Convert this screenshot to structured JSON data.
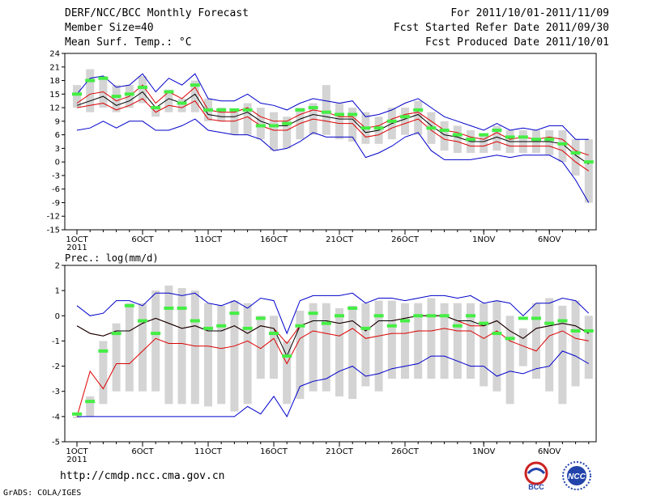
{
  "header": {
    "title": "DERF/NCC/BCC Monthly Forecast",
    "member": "Member Size=40",
    "variable": "Mean Surf. Temp.: °C",
    "period": "For 2011/10/01-2011/11/09",
    "fcst_started": "Fcst Started Refer Date 2011/09/30",
    "fcst_produced": "Fcst Produced Date 2011/10/01"
  },
  "footer": {
    "url": "http://cmdp.ncc.cma.gov.cn",
    "credit": "GrADS: COLA/IGES",
    "logo_bcc": "BCC",
    "logo_ncc": "NCC"
  },
  "colors": {
    "box": "#d4d4d4",
    "median": "#44ee44",
    "max": "#0000cc",
    "min": "#0000cc",
    "p": "#dd0000",
    "mean": "#000000"
  },
  "chart_data": [
    {
      "type": "box",
      "title": "Mean Surf. Temp.: °C",
      "ylim": [
        -15,
        24
      ],
      "yticks": [
        24,
        21,
        18,
        15,
        12,
        9,
        6,
        3,
        0,
        -3,
        -6,
        -9,
        -12,
        -15
      ],
      "xticks": [
        {
          "i": 0,
          "label": "1OCT"
        },
        {
          "i": 5,
          "label": "6OCT"
        },
        {
          "i": 10,
          "label": "11OCT"
        },
        {
          "i": 15,
          "label": "16OCT"
        },
        {
          "i": 20,
          "label": "21OCT"
        },
        {
          "i": 25,
          "label": "26OCT"
        },
        {
          "i": 31,
          "label": "1NOV"
        },
        {
          "i": 36,
          "label": "6NOV"
        }
      ],
      "year_label": "2011",
      "days": 40,
      "max": [
        15,
        18.5,
        19,
        16.5,
        17,
        19.5,
        15.5,
        18.5,
        17,
        19.5,
        14,
        13.5,
        13.5,
        15,
        13,
        12.5,
        11.5,
        13,
        14,
        13.5,
        13,
        13.5,
        10,
        10.5,
        11.5,
        13,
        14,
        12,
        10,
        9,
        8,
        7,
        8.5,
        7,
        7.5,
        7,
        8,
        8,
        5,
        5
      ],
      "p90": [
        13,
        15,
        15.5,
        13.5,
        14.5,
        17,
        13,
        15.5,
        14,
        16.5,
        11.5,
        11,
        11,
        12,
        10,
        9,
        9,
        10.5,
        11.5,
        11,
        10,
        10,
        7.5,
        8,
        9.5,
        10.5,
        11,
        9,
        7,
        6.5,
        5.5,
        5,
        6.5,
        5,
        5.5,
        5,
        5.5,
        5,
        2.5,
        1.5
      ],
      "mean": [
        12.5,
        13.5,
        14.5,
        12.5,
        13.5,
        15.5,
        12,
        14,
        13,
        15,
        10.5,
        10,
        10,
        11,
        9,
        8,
        8,
        9.5,
        10.5,
        10,
        9.5,
        9.5,
        6.5,
        7,
        8.5,
        9.5,
        10.5,
        8,
        6,
        5.5,
        4.5,
        4.5,
        5.5,
        4.5,
        4.5,
        4.5,
        4.5,
        4,
        1.5,
        -0.5
      ],
      "p10": [
        12,
        12.5,
        13,
        11.5,
        12.5,
        14,
        11,
        12.5,
        12,
        13.5,
        9.5,
        9,
        9,
        10,
        8,
        7,
        7,
        8.5,
        9.5,
        9,
        8.5,
        8.5,
        5.5,
        6,
        7.5,
        8.5,
        9.5,
        7,
        5,
        4.5,
        3.5,
        3.5,
        4.5,
        3.5,
        3.5,
        3.5,
        3.5,
        2.5,
        0,
        -2
      ],
      "min": [
        7,
        7.5,
        9,
        7.5,
        9,
        9,
        7,
        7,
        8,
        9.5,
        7,
        6.5,
        6,
        6,
        5,
        2.5,
        3,
        4.5,
        6.5,
        5.5,
        5.5,
        5.5,
        1,
        2,
        3.5,
        5.5,
        6.5,
        2.5,
        0.5,
        0.5,
        0.5,
        1,
        1.5,
        1,
        1.5,
        1.5,
        1.5,
        0,
        -4,
        -9
      ],
      "box_hi": [
        17,
        20.5,
        19,
        17,
        17,
        19,
        12,
        16,
        14,
        18,
        14,
        12,
        11.5,
        13,
        12,
        11,
        10,
        12,
        13,
        17,
        13,
        12,
        11,
        10,
        12,
        12,
        13.5,
        11,
        9,
        8,
        7,
        6,
        8,
        7,
        7,
        7,
        7,
        7,
        5,
        5
      ],
      "box_lo": [
        12,
        11,
        12,
        11,
        12,
        13,
        10,
        11,
        11,
        11,
        9,
        9,
        6,
        6,
        5,
        2.5,
        3,
        5,
        6,
        6,
        5,
        4.5,
        4,
        4,
        5,
        6,
        6,
        4,
        2.5,
        2,
        2,
        2,
        2.5,
        2,
        2,
        2,
        1.5,
        0,
        -3,
        -9
      ],
      "median": [
        15,
        18,
        18.5,
        14.5,
        15,
        16.5,
        12,
        15.5,
        13,
        17,
        11.5,
        11.5,
        11.5,
        11.5,
        8,
        8,
        8.5,
        11.5,
        12,
        11,
        10.5,
        10.5,
        7.5,
        7.5,
        9,
        10,
        11.5,
        7.5,
        7,
        6,
        5,
        6,
        7,
        5.5,
        5.5,
        5,
        5,
        4,
        2,
        0
      ]
    },
    {
      "type": "box",
      "title": "Prec.: log(mm/d)",
      "ylim": [
        -5,
        2
      ],
      "yticks": [
        2,
        1,
        0,
        -1,
        -2,
        -3,
        -4,
        -5
      ],
      "xticks": [
        {
          "i": 0,
          "label": "1OCT"
        },
        {
          "i": 5,
          "label": "6OCT"
        },
        {
          "i": 10,
          "label": "11OCT"
        },
        {
          "i": 15,
          "label": "16OCT"
        },
        {
          "i": 20,
          "label": "21OCT"
        },
        {
          "i": 25,
          "label": "26OCT"
        },
        {
          "i": 31,
          "label": "1NOV"
        },
        {
          "i": 36,
          "label": "6NOV"
        }
      ],
      "year_label": "2011",
      "days": 40,
      "max": [
        0.4,
        0,
        0.1,
        0.6,
        0.6,
        0.4,
        0.9,
        0.9,
        0.8,
        0.9,
        0.5,
        0.4,
        0.6,
        0.3,
        0.7,
        0.6,
        -0.7,
        0.6,
        0.8,
        0.8,
        0.8,
        0.9,
        0.5,
        0.7,
        0.7,
        0.6,
        0.7,
        0.8,
        0.8,
        0.7,
        0.8,
        0.5,
        0.6,
        0.5,
        0,
        0.5,
        0.5,
        0.7,
        0.6,
        0.1
      ],
      "p90": [
        -0.4,
        -0.7,
        -0.8,
        -0.6,
        -0.6,
        -0.3,
        -0.1,
        -0.3,
        -0.5,
        -0.4,
        -0.6,
        -0.6,
        -0.4,
        -0.7,
        -0.4,
        -0.5,
        -1.1,
        -0.4,
        -0.2,
        -0.2,
        -0.3,
        -0.2,
        -0.6,
        -0.2,
        -0.2,
        -0.1,
        0,
        0,
        0,
        -0.2,
        -0.4,
        -0.4,
        -0.2,
        -0.6,
        -0.9,
        -0.5,
        -0.4,
        -0.3,
        -0.4,
        -0.7
      ],
      "mean": [
        -0.4,
        -0.7,
        -0.8,
        -0.6,
        -0.6,
        -0.3,
        -0.1,
        -0.3,
        -0.5,
        -0.4,
        -0.6,
        -0.6,
        -0.4,
        -0.7,
        -0.4,
        -0.5,
        -1.6,
        -0.4,
        -0.2,
        -0.2,
        -0.3,
        -0.2,
        -0.6,
        -0.2,
        -0.2,
        -0.1,
        0,
        0,
        0,
        -0.2,
        -0.2,
        -0.4,
        -0.2,
        -0.6,
        -0.9,
        -0.5,
        -0.4,
        -0.3,
        -0.4,
        -0.7
      ],
      "p10": [
        -4,
        -2.2,
        -2.9,
        -1.9,
        -1.9,
        -1.4,
        -0.9,
        -1.1,
        -1.1,
        -1.2,
        -1.2,
        -1.3,
        -1.2,
        -1,
        -1.3,
        -0.9,
        -1.9,
        -0.9,
        -0.6,
        -0.7,
        -0.8,
        -0.5,
        -0.9,
        -0.8,
        -0.7,
        -0.7,
        -0.6,
        -0.6,
        -0.5,
        -0.6,
        -0.6,
        -0.9,
        -0.6,
        -1,
        -1.2,
        -1.4,
        -0.8,
        -0.6,
        -0.9,
        -1
      ],
      "min": [
        -4,
        -4,
        -4,
        -4,
        -4,
        -4,
        -4,
        -4,
        -4,
        -4,
        -4,
        -4,
        -4,
        -3.6,
        -3.9,
        -3.2,
        -4,
        -2.8,
        -2.6,
        -2.5,
        -2.2,
        -2,
        -2.4,
        -2.3,
        -2.1,
        -2,
        -1.9,
        -1.6,
        -1.6,
        -1.8,
        -2,
        -2,
        -2.4,
        -2.2,
        -2.3,
        -2.1,
        -2,
        -1.4,
        -1.6,
        -1.9
      ],
      "box_hi": [
        -4,
        -3.2,
        -1,
        -0.3,
        0.5,
        0.5,
        1,
        1.2,
        1.1,
        1,
        0.5,
        0.4,
        0.6,
        0.5,
        0,
        0,
        -1,
        0.2,
        0.5,
        0.5,
        0.3,
        0.4,
        0.5,
        0.6,
        0.6,
        0.5,
        0.5,
        0.7,
        0.5,
        0.5,
        0.5,
        0.5,
        0.6,
        0,
        -0.5,
        0.5,
        0.7,
        0.4,
        0.6,
        0
      ],
      "box_lo": [
        -4,
        -4,
        -3.5,
        -3,
        -3,
        -3,
        -3,
        -3.5,
        -3.5,
        -3.5,
        -3.6,
        -3.5,
        -3.8,
        -3.5,
        -2.5,
        -2.5,
        -3.5,
        -3.3,
        -3,
        -3,
        -3.2,
        -3.3,
        -2.8,
        -3,
        -2.5,
        -2.5,
        -2.5,
        -2.5,
        -2.5,
        -2.5,
        -2.5,
        -2.8,
        -3,
        -3.5,
        -2,
        -2.5,
        -3,
        -3.5,
        -2.8,
        -2.5
      ],
      "median": [
        -3.9,
        -3.4,
        -1.4,
        -0.7,
        0.4,
        -0.2,
        -0.7,
        0.3,
        0.3,
        -0.2,
        -0.5,
        -0.4,
        0.1,
        -0.5,
        -0.1,
        -0.7,
        -1.6,
        -0.4,
        0.1,
        -0.3,
        0,
        0.3,
        -0.5,
        0,
        -0.4,
        -0.2,
        0,
        0,
        0,
        -0.4,
        0,
        -0.3,
        -0.7,
        -0.9,
        -0.1,
        -0.1,
        -0.3,
        -0.2,
        -0.6,
        -0.6
      ]
    }
  ]
}
